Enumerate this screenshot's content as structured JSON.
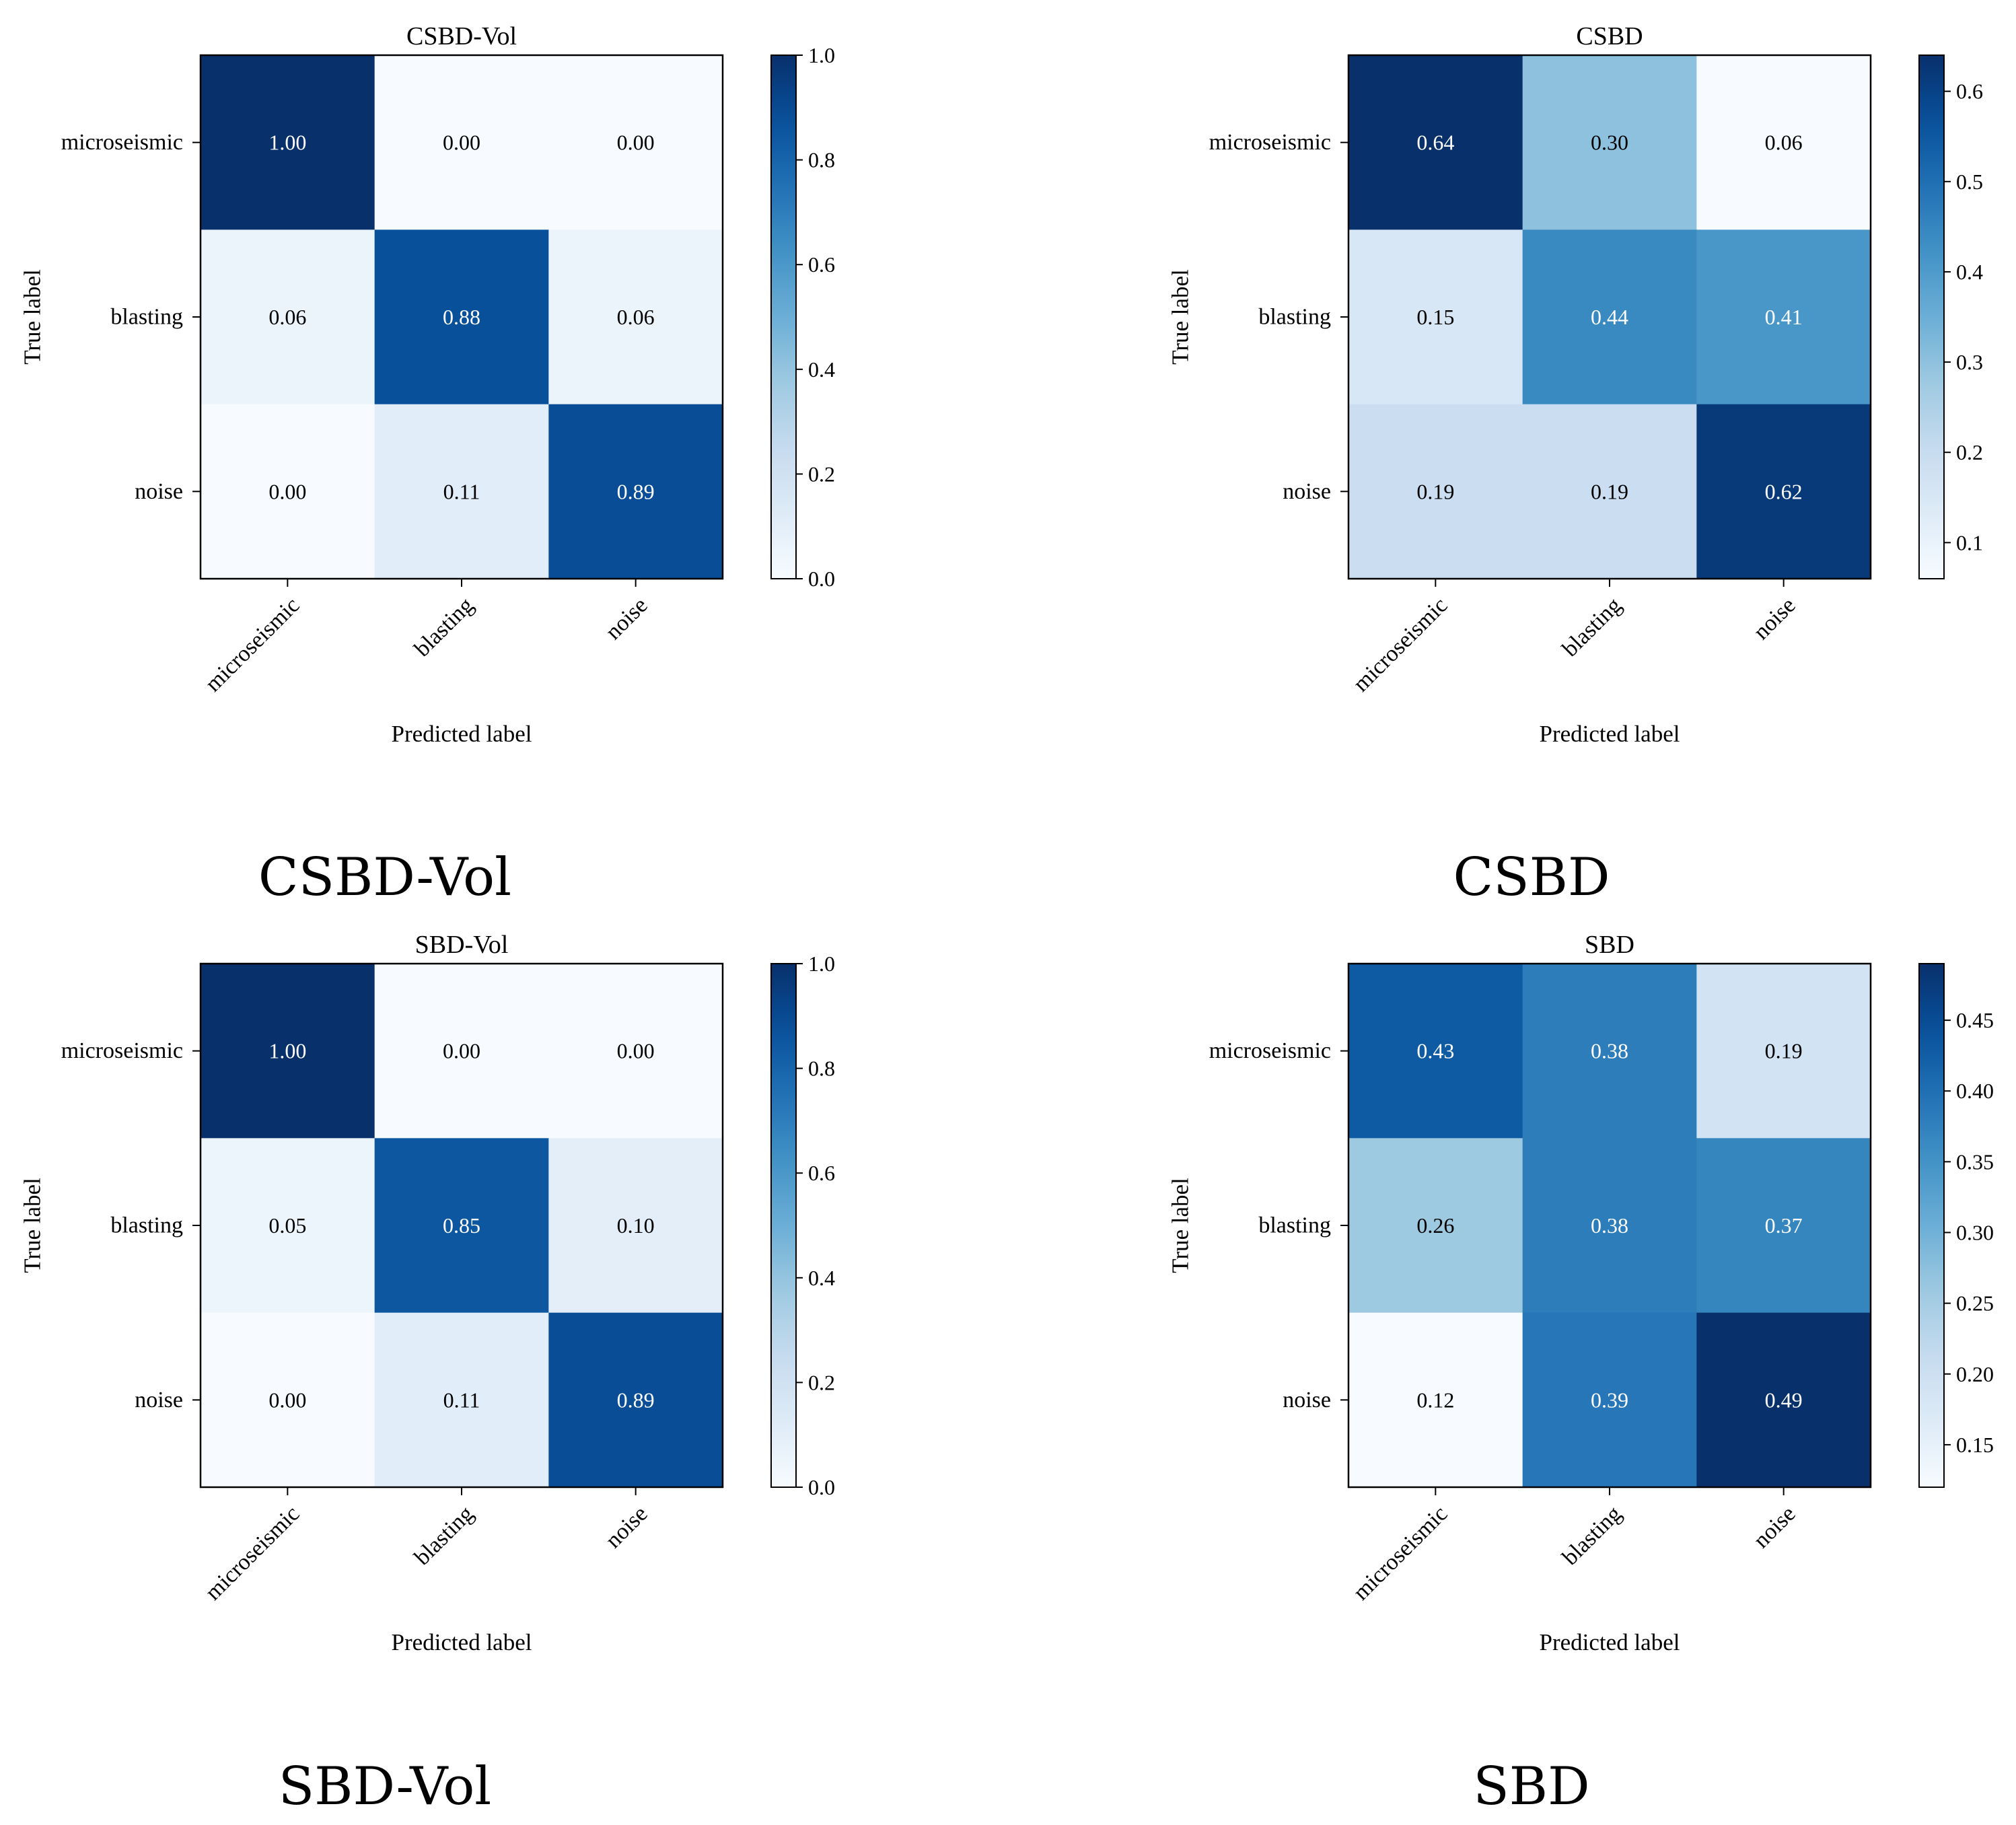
{
  "chart_data": [
    {
      "type": "heatmap",
      "title": "CSBD-Vol",
      "caption": "CSBD-Vol",
      "xlabel": "Predicted label",
      "ylabel": "True label",
      "row_labels": [
        "microseismic",
        "blasting",
        "noise"
      ],
      "col_labels": [
        "microseismic",
        "blasting",
        "noise"
      ],
      "values": [
        [
          1.0,
          0.0,
          0.0
        ],
        [
          0.06,
          0.88,
          0.06
        ],
        [
          0.0,
          0.11,
          0.89
        ]
      ],
      "cell_labels": [
        [
          "1.00",
          "0.00",
          "0.00"
        ],
        [
          "0.06",
          "0.88",
          "0.06"
        ],
        [
          "0.00",
          "0.11",
          "0.89"
        ]
      ],
      "colormap": "Blues",
      "color_range": [
        0.0,
        1.0
      ],
      "colorbar_ticks": [
        0.0,
        0.2,
        0.4,
        0.6,
        0.8,
        1.0
      ],
      "colorbar_tick_labels": [
        "0.0",
        "0.2",
        "0.4",
        "0.6",
        "0.8",
        "1.0"
      ]
    },
    {
      "type": "heatmap",
      "title": "CSBD",
      "caption": "CSBD",
      "xlabel": "Predicted label",
      "ylabel": "True label",
      "row_labels": [
        "microseismic",
        "blasting",
        "noise"
      ],
      "col_labels": [
        "microseismic",
        "blasting",
        "noise"
      ],
      "values": [
        [
          0.64,
          0.3,
          0.06
        ],
        [
          0.15,
          0.44,
          0.41
        ],
        [
          0.19,
          0.19,
          0.62
        ]
      ],
      "cell_labels": [
        [
          "0.64",
          "0.30",
          "0.06"
        ],
        [
          "0.15",
          "0.44",
          "0.41"
        ],
        [
          "0.19",
          "0.19",
          "0.62"
        ]
      ],
      "colormap": "Blues",
      "color_range": [
        0.06,
        0.64
      ],
      "colorbar_ticks": [
        0.1,
        0.2,
        0.3,
        0.4,
        0.5,
        0.6
      ],
      "colorbar_tick_labels": [
        "0.1",
        "0.2",
        "0.3",
        "0.4",
        "0.5",
        "0.6"
      ]
    },
    {
      "type": "heatmap",
      "title": "SBD-Vol",
      "caption": "SBD-Vol",
      "xlabel": "Predicted label",
      "ylabel": "True label",
      "row_labels": [
        "microseismic",
        "blasting",
        "noise"
      ],
      "col_labels": [
        "microseismic",
        "blasting",
        "noise"
      ],
      "values": [
        [
          1.0,
          0.0,
          0.0
        ],
        [
          0.05,
          0.85,
          0.1
        ],
        [
          0.0,
          0.11,
          0.89
        ]
      ],
      "cell_labels": [
        [
          "1.00",
          "0.00",
          "0.00"
        ],
        [
          "0.05",
          "0.85",
          "0.10"
        ],
        [
          "0.00",
          "0.11",
          "0.89"
        ]
      ],
      "colormap": "Blues",
      "color_range": [
        0.0,
        1.0
      ],
      "colorbar_ticks": [
        0.0,
        0.2,
        0.4,
        0.6,
        0.8,
        1.0
      ],
      "colorbar_tick_labels": [
        "0.0",
        "0.2",
        "0.4",
        "0.6",
        "0.8",
        "1.0"
      ]
    },
    {
      "type": "heatmap",
      "title": "SBD",
      "caption": "SBD",
      "xlabel": "Predicted label",
      "ylabel": "True label",
      "row_labels": [
        "microseismic",
        "blasting",
        "noise"
      ],
      "col_labels": [
        "microseismic",
        "blasting",
        "noise"
      ],
      "values": [
        [
          0.43,
          0.38,
          0.19
        ],
        [
          0.26,
          0.38,
          0.37
        ],
        [
          0.12,
          0.39,
          0.49
        ]
      ],
      "cell_labels": [
        [
          "0.43",
          "0.38",
          "0.19"
        ],
        [
          "0.26",
          "0.38",
          "0.37"
        ],
        [
          "0.12",
          "0.39",
          "0.49"
        ]
      ],
      "colormap": "Blues",
      "color_range": [
        0.12,
        0.49
      ],
      "colorbar_ticks": [
        0.15,
        0.2,
        0.25,
        0.3,
        0.35,
        0.4,
        0.45
      ],
      "colorbar_tick_labels": [
        "0.15",
        "0.20",
        "0.25",
        "0.30",
        "0.35",
        "0.40",
        "0.45"
      ]
    }
  ]
}
